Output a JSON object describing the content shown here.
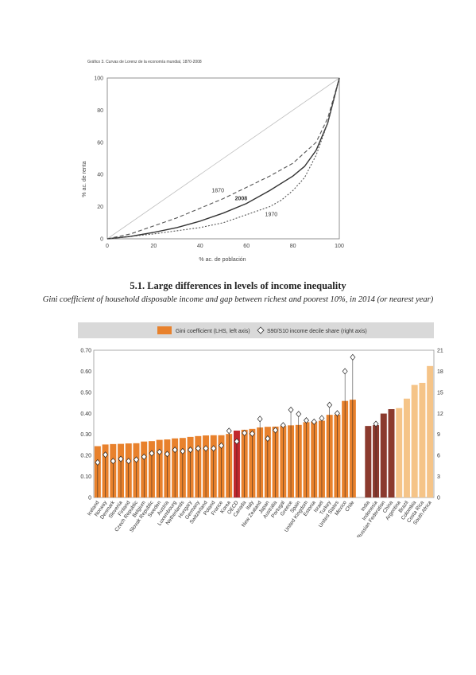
{
  "chart_data": [
    {
      "type": "line",
      "title": "Gráfico 3. Curvas de Lorenz de la economía mundial, 1870-2008",
      "xlabel": "% ac. de población",
      "ylabel": "% ac. de renta",
      "xlim": [
        0,
        100
      ],
      "ylim": [
        0,
        100
      ],
      "xticks": [
        "0",
        "20",
        "40",
        "60",
        "80",
        "100"
      ],
      "yticks": [
        "0",
        "20",
        "40",
        "60",
        "80",
        "100"
      ],
      "grid": false,
      "series": [
        {
          "name": "",
          "style": "equality-line",
          "points": [
            [
              0,
              0
            ],
            [
              100,
              100
            ]
          ]
        },
        {
          "name": "1870",
          "style": "dashed",
          "points": [
            [
              0,
              0
            ],
            [
              10,
              3
            ],
            [
              20,
              8
            ],
            [
              30,
              13
            ],
            [
              40,
              19
            ],
            [
              50,
              25
            ],
            [
              60,
              32
            ],
            [
              70,
              39
            ],
            [
              80,
              47
            ],
            [
              90,
              60
            ],
            [
              95,
              75
            ],
            [
              100,
              100
            ]
          ]
        },
        {
          "name": "2008",
          "style": "solid",
          "points": [
            [
              0,
              0
            ],
            [
              10,
              1.5
            ],
            [
              20,
              4
            ],
            [
              30,
              7
            ],
            [
              40,
              11
            ],
            [
              50,
              16
            ],
            [
              60,
              22
            ],
            [
              70,
              30
            ],
            [
              80,
              39
            ],
            [
              85,
              45
            ],
            [
              90,
              55
            ],
            [
              95,
              72
            ],
            [
              100,
              100
            ]
          ]
        },
        {
          "name": "1970",
          "style": "dotted",
          "points": [
            [
              0,
              0
            ],
            [
              10,
              1.5
            ],
            [
              20,
              3
            ],
            [
              30,
              5
            ],
            [
              40,
              7
            ],
            [
              50,
              10
            ],
            [
              60,
              15
            ],
            [
              70,
              20
            ],
            [
              75,
              24
            ],
            [
              80,
              30
            ],
            [
              85,
              38
            ],
            [
              90,
              52
            ],
            [
              95,
              72
            ],
            [
              100,
              100
            ]
          ]
        }
      ],
      "colors": {
        "equality": "#bdbdbd",
        "curves": "#555555"
      }
    },
    {
      "type": "bar",
      "title": "5.1. Large differences in levels of income inequality",
      "subtitle": "Gini coefficient of household disposable income and gap between richest and poorest 10%, in 2014 (or nearest year)",
      "legend": [
        "Gini coefficient (LHS, left axis)",
        "S90/S10 income decile share (right axis)"
      ],
      "legend_position": "top",
      "ylim_left": [
        0,
        0.7
      ],
      "ylim_right": [
        0,
        21
      ],
      "yticks_left": [
        "0",
        "0.10",
        "0.20",
        "0.30",
        "0.40",
        "0.50",
        "0.60",
        "0.70"
      ],
      "yticks_right": [
        "0",
        "3",
        "6",
        "9",
        "12",
        "15",
        "18",
        "21"
      ],
      "categories": [
        "Iceland",
        "Norway",
        "Denmark",
        "Slovenia",
        "Finland",
        "Czech Republic",
        "Belgium",
        "Slovak Republic",
        "Sweden",
        "Austria",
        "Luxembourg",
        "Netherlands",
        "Hungary",
        "Germany",
        "Switzerland",
        "Poland",
        "France",
        "Korea",
        "OECD",
        "Canada",
        "Italy",
        "New Zealand",
        "Japan",
        "Australia",
        "Portugal",
        "Greece",
        "Spain",
        "United Kingdom",
        "Estonia",
        "Israel",
        "Turkey",
        "United States",
        "Mexico",
        "Chile",
        "",
        "India",
        "Indonesia",
        "Russian Federation",
        "China",
        "Argentina",
        "Brazil",
        "Colombia",
        "Costa Rica",
        "South Africa"
      ],
      "gini": [
        0.244,
        0.252,
        0.254,
        0.255,
        0.257,
        0.258,
        0.266,
        0.268,
        0.274,
        0.276,
        0.281,
        0.283,
        0.288,
        0.292,
        0.295,
        0.296,
        0.296,
        0.302,
        0.318,
        0.322,
        0.326,
        0.333,
        0.336,
        0.337,
        0.34,
        0.343,
        0.345,
        0.358,
        0.361,
        0.365,
        0.393,
        0.394,
        0.459,
        0.465,
        null,
        0.34,
        0.344,
        0.399,
        0.42,
        0.425,
        0.47,
        0.535,
        0.545,
        0.625
      ],
      "s90s10": [
        5.0,
        6.1,
        5.2,
        5.5,
        5.2,
        5.4,
        5.8,
        6.3,
        6.5,
        6.2,
        6.8,
        6.6,
        6.8,
        7.0,
        7.0,
        7.0,
        7.4,
        9.5,
        8.0,
        9.2,
        9.1,
        11.2,
        8.4,
        9.6,
        10.3,
        12.5,
        11.9,
        11.0,
        10.8,
        11.3,
        13.2,
        12.0,
        18.0,
        20.0,
        null,
        null,
        10.5,
        null,
        null,
        null,
        null,
        null,
        null,
        null
      ],
      "bar_colors": [
        "#e8812c",
        "#e8812c",
        "#e8812c",
        "#e8812c",
        "#e8812c",
        "#e8812c",
        "#e8812c",
        "#e8812c",
        "#e8812c",
        "#e8812c",
        "#e8812c",
        "#e8812c",
        "#e8812c",
        "#e8812c",
        "#e8812c",
        "#e8812c",
        "#e8812c",
        "#e8812c",
        "#c1272d",
        "#e8812c",
        "#e8812c",
        "#e8812c",
        "#e8812c",
        "#e8812c",
        "#e8812c",
        "#e8812c",
        "#e8812c",
        "#e8812c",
        "#e8812c",
        "#e8812c",
        "#e8812c",
        "#e8812c",
        "#e8812c",
        "#e8812c",
        "#ffffff",
        "#8b3a2e",
        "#8b3a2e",
        "#8b3a2e",
        "#8b3a2e",
        "#f5c488",
        "#f5c488",
        "#f5c488",
        "#f5c488",
        "#f5c488"
      ],
      "colors": {
        "bar": "#e8812c",
        "oecd": "#c1272d",
        "emerging_dark": "#8b3a2e",
        "emerging_light": "#f5c488",
        "legend_band": "#d9d9d9"
      }
    }
  ]
}
